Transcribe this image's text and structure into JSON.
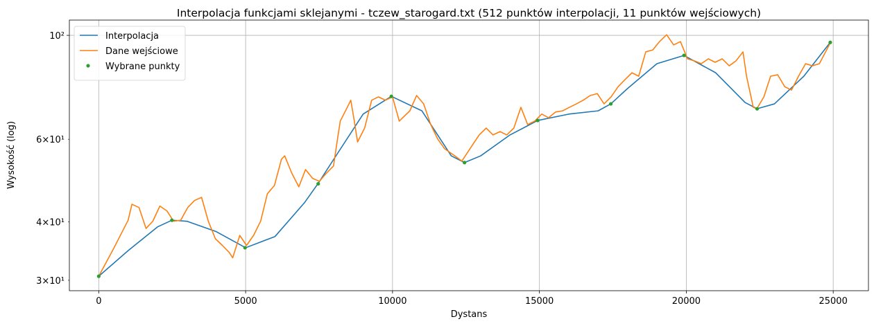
{
  "chart_data": {
    "type": "line",
    "title": "Interpolacja funkcjami sklejanymi - tczew_starogard.txt (512 punktów interpolacji, 11 punktów wejściowych)",
    "x_label": "Dystans",
    "y_label": "Wysokość (log)",
    "xlim": [
      -1000,
      26200
    ],
    "ylim": [
      28.5,
      107.8
    ],
    "y_scale": "log",
    "xticks": [
      0,
      5000,
      10000,
      15000,
      20000,
      25000
    ],
    "yticks": [
      {
        "value": 100,
        "label": "10²"
      }
    ],
    "yticks_minor": [
      {
        "value": 60,
        "label": "6×10¹"
      },
      {
        "value": 40,
        "label": "4×10¹"
      },
      {
        "value": 30,
        "label": "3×10¹"
      }
    ],
    "grid": true,
    "legend": "upper left",
    "series": [
      {
        "name": "Interpolacja",
        "color": "#1f77b4",
        "type": "line",
        "x": [
          0,
          1000,
          2000,
          2490,
          3000,
          4000,
          5000,
          6000,
          7000,
          7470,
          8000,
          9000,
          9960,
          11000,
          12000,
          12450,
          13000,
          14000,
          14940,
          16000,
          17000,
          17430,
          18000,
          19000,
          19920,
          21000,
          22000,
          22410,
          23000,
          24000,
          24900
        ],
        "values": [
          30.6,
          34.7,
          39.0,
          40.3,
          40.1,
          38.1,
          35.2,
          37.2,
          43.9,
          48.3,
          54.4,
          67.9,
          74.1,
          69.0,
          55.3,
          53.5,
          55.3,
          61.3,
          65.8,
          67.9,
          69.0,
          71.4,
          77.0,
          87.0,
          90.6,
          83.2,
          71.9,
          69.7,
          71.4,
          81.8,
          96.6
        ]
      },
      {
        "name": "Dane wejściowe",
        "color": "#ff7f0e",
        "type": "line",
        "x": [
          0,
          500,
          1000,
          1130,
          1370,
          1610,
          1840,
          2080,
          2320,
          2550,
          2790,
          3030,
          3260,
          3500,
          3730,
          3970,
          4210,
          4440,
          4560,
          4800,
          5030,
          5270,
          5510,
          5740,
          5980,
          6220,
          6330,
          6570,
          6810,
          7040,
          7280,
          7510,
          7750,
          7990,
          8220,
          8460,
          8580,
          8700,
          8810,
          9050,
          9290,
          9520,
          9760,
          10000,
          10230,
          10590,
          10820,
          11060,
          11300,
          11530,
          11770,
          12120,
          12360,
          12710,
          12950,
          13190,
          13420,
          13660,
          13890,
          14130,
          14370,
          14600,
          14840,
          15080,
          15310,
          15550,
          15790,
          16020,
          16260,
          16490,
          16730,
          16970,
          17200,
          17440,
          17680,
          17910,
          18150,
          18380,
          18620,
          18860,
          19090,
          19330,
          19570,
          19800,
          20040,
          20280,
          20510,
          20750,
          20980,
          21220,
          21460,
          21690,
          21930,
          22050,
          22280,
          22400,
          22640,
          22870,
          23110,
          23350,
          23580,
          23820,
          24060,
          24290,
          24530,
          24910
        ],
        "values": [
          30.6,
          35.0,
          40.3,
          43.6,
          42.9,
          38.7,
          40.1,
          43.2,
          42.2,
          40.1,
          40.3,
          42.9,
          44.4,
          45.1,
          40.1,
          36.8,
          35.6,
          34.4,
          33.5,
          37.4,
          35.6,
          37.4,
          40.1,
          45.9,
          47.8,
          54.4,
          55.3,
          50.8,
          47.5,
          51.7,
          49.5,
          48.8,
          50.8,
          52.6,
          65.6,
          70.2,
          72.7,
          65.6,
          59.2,
          63.4,
          72.7,
          73.9,
          72.7,
          73.9,
          65.6,
          69.0,
          74.4,
          71.4,
          64.5,
          60.2,
          57.3,
          55.3,
          53.9,
          58.2,
          61.3,
          63.4,
          61.3,
          62.3,
          61.3,
          63.4,
          70.2,
          64.5,
          65.6,
          67.9,
          66.7,
          68.6,
          69.0,
          70.2,
          71.4,
          72.7,
          74.4,
          75.1,
          71.4,
          73.9,
          77.7,
          80.4,
          83.2,
          81.8,
          92.2,
          93.1,
          97.0,
          100.3,
          95.4,
          97.0,
          89.1,
          88.2,
          87.0,
          89.1,
          87.6,
          89.1,
          86.1,
          88.2,
          92.2,
          81.8,
          70.2,
          69.7,
          73.9,
          81.8,
          82.4,
          77.7,
          76.4,
          81.8,
          87.0,
          86.1,
          87.0,
          96.6
        ]
      },
      {
        "name": "Wybrane punkty",
        "color": "#2ca02c",
        "type": "scatter",
        "x": [
          0,
          2490,
          4980,
          7470,
          9960,
          12450,
          14940,
          17430,
          19920,
          22410,
          24900
        ],
        "values": [
          30.6,
          40.3,
          35.2,
          48.2,
          74.1,
          53.5,
          65.8,
          71.4,
          90.6,
          69.7,
          96.6
        ]
      }
    ]
  }
}
